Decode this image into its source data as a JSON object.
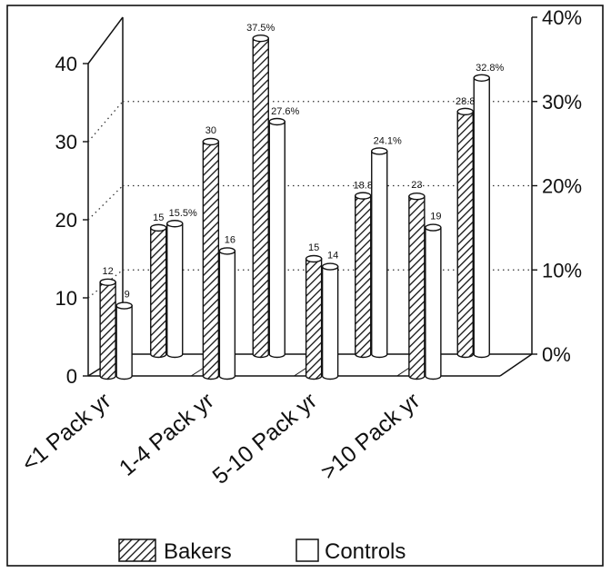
{
  "chart_data": {
    "type": "bar",
    "categories": [
      "<1 Pack yr",
      "1-4 Pack yr",
      "5-10 Pack yr",
      ">10 Pack yr"
    ],
    "series": [
      {
        "name": "Bakers",
        "count": [
          12,
          30,
          15,
          23
        ],
        "percent": [
          15,
          37.5,
          18.8,
          28.8
        ]
      },
      {
        "name": "Controls",
        "count": [
          9,
          16,
          14,
          19
        ],
        "percent": [
          15.5,
          27.6,
          24.1,
          32.8
        ]
      }
    ],
    "value_labels": {
      "count": [
        [
          "12",
          "9"
        ],
        [
          "30",
          "16"
        ],
        [
          "15",
          "14"
        ],
        [
          "23",
          "19"
        ]
      ],
      "percent": [
        [
          "15",
          "15.5%"
        ],
        [
          "37.5%",
          "27.6%"
        ],
        [
          "18.8",
          "24.1%"
        ],
        [
          "28.8",
          "32.8%"
        ]
      ]
    },
    "left_axis": {
      "ticks": [
        "0",
        "10",
        "20",
        "30",
        "40"
      ],
      "range": [
        0,
        40
      ]
    },
    "right_axis": {
      "ticks": [
        "0%",
        "10%",
        "20%",
        "30%",
        "40%"
      ],
      "range": [
        0,
        40
      ]
    },
    "title": "",
    "xlabel": "",
    "ylabel": "",
    "grid": true,
    "style": "3d-bar",
    "legend": {
      "placement": "bottom-center",
      "entries": [
        "Bakers",
        "Controls"
      ]
    },
    "colors": {
      "bakers_fill": "hatched",
      "controls_fill": "#ffffff",
      "line": "#111111"
    }
  }
}
